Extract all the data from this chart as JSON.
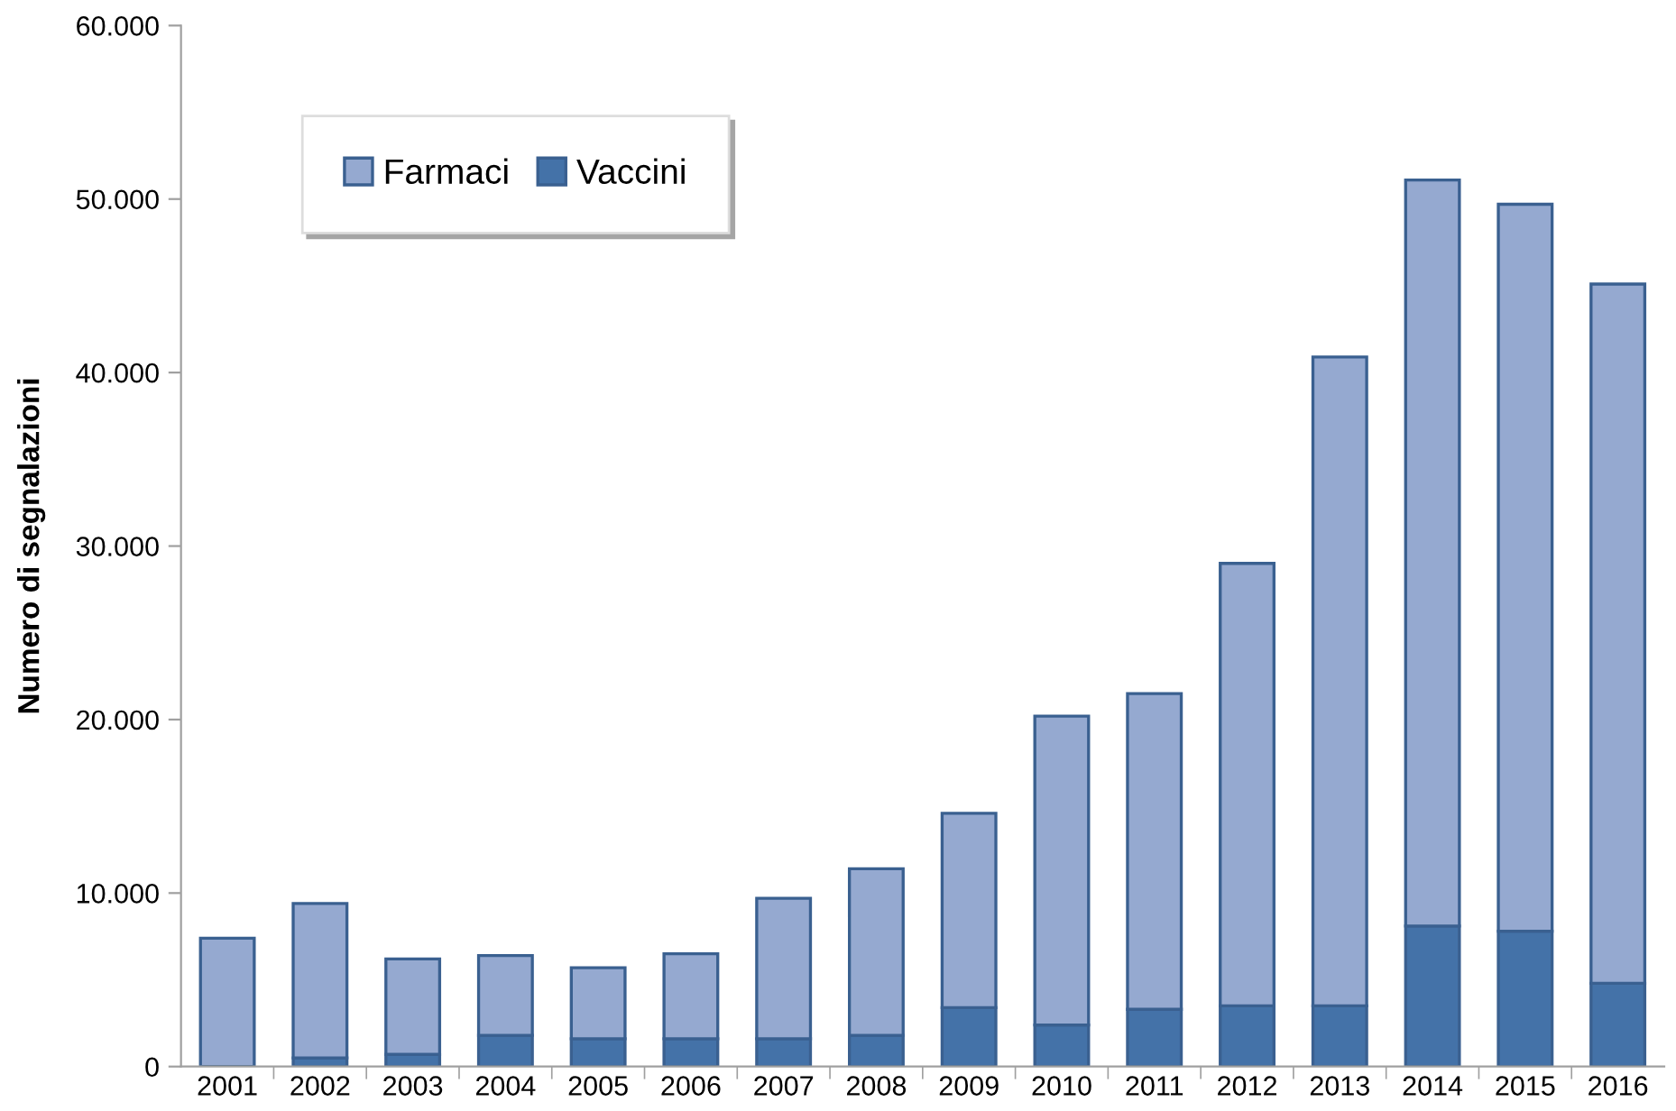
{
  "chart_data": {
    "type": "bar",
    "stacked": true,
    "ylabel": "Numero di segnalazioni",
    "categories": [
      "2001",
      "2002",
      "2003",
      "2004",
      "2005",
      "2006",
      "2007",
      "2008",
      "2009",
      "2010",
      "2011",
      "2012",
      "2013",
      "2014",
      "2015",
      "2016"
    ],
    "series": [
      {
        "name": "Vaccini",
        "color": "#4472a8",
        "values": [
          null,
          500,
          700,
          1800,
          1600,
          1600,
          1600,
          1800,
          3400,
          2400,
          3300,
          3500,
          3500,
          8100,
          7800,
          4800
        ]
      },
      {
        "name": "Farmaci",
        "color": "#95a9d0",
        "values": [
          7400,
          8900,
          5500,
          4600,
          4100,
          4900,
          8100,
          9600,
          11200,
          17800,
          18200,
          25500,
          37400,
          43000,
          41900,
          40300
        ]
      }
    ],
    "ylim": [
      0,
      60000
    ],
    "yticks": [
      {
        "value": 0,
        "label": "0"
      },
      {
        "value": 10000,
        "label": "10.000"
      },
      {
        "value": 20000,
        "label": "20.000"
      },
      {
        "value": 30000,
        "label": "30.000"
      },
      {
        "value": 40000,
        "label": "40.000"
      },
      {
        "value": 50000,
        "label": "50.000"
      },
      {
        "value": 60000,
        "label": "60.000"
      }
    ],
    "grid": false,
    "legend": "top left"
  }
}
